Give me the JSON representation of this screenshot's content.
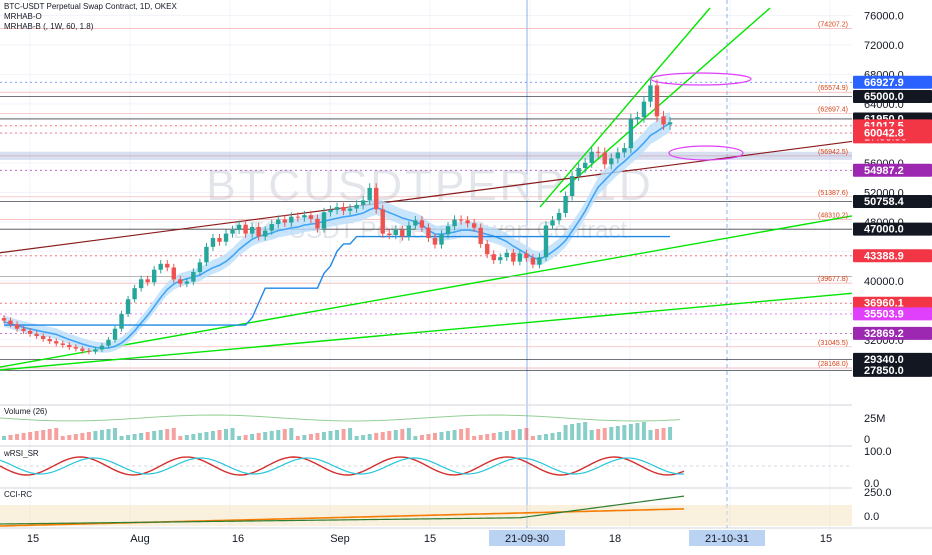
{
  "legend": {
    "title": "BTC-USDT Perpetual Swap Contract, 1D, OKEX",
    "ind1": "MRHAB-O",
    "ind2": "MRHAB-B (, 1W, 60, 1.8)"
  },
  "watermark": {
    "symbol": "BTCUSDTPERP, 1D",
    "name": "BTC-USDT Perpetual Swap Contract"
  },
  "panes": {
    "volume": "Volume (26)",
    "rsi": "wRSI_SR",
    "cci": "CCI-RC"
  },
  "colors": {
    "bull": "#26a69a",
    "bear": "#ef5350",
    "trend": "#00e600",
    "blueband": "#2962ff",
    "oscRed": "#d32f2f",
    "cciGreen": "#2e7d32",
    "cciOrange": "#f57c00"
  },
  "chart_data": {
    "type": "candlestick",
    "y_axis_ticks": [
      "76000.0",
      "72000.0",
      "68000.0",
      "64000.0",
      "56000.0",
      "52000.0",
      "48000.0",
      "40000.0",
      "32000.0"
    ],
    "y_range": [
      26000,
      77000
    ],
    "x_axis_ticks": [
      "15",
      "Aug",
      "16",
      "Sep",
      "15",
      "18",
      "15"
    ],
    "x_highlight_labels": [
      "21-09-30",
      "21-10-31"
    ],
    "price_tags": [
      {
        "label": "66927.9",
        "price": 66927.9,
        "color": "#2962ff"
      },
      {
        "label": "65000.0",
        "price": 65000.0,
        "color": "#131722"
      },
      {
        "label": "61950.0",
        "price": 61950.0,
        "color": "#131722"
      },
      {
        "label": "61017.5",
        "label2": "17:08:50",
        "price": 61017.5,
        "color": "#f23645"
      },
      {
        "label": "60042.8",
        "price": 60042.8,
        "color": "#f23645"
      },
      {
        "label": "54987.2",
        "price": 54987.2,
        "color": "#9c27b0"
      },
      {
        "label": "50758.4",
        "price": 50758.4,
        "color": "#131722"
      },
      {
        "label": "47000.0",
        "price": 47000.0,
        "color": "#131722"
      },
      {
        "label": "43388.9",
        "price": 43388.9,
        "color": "#f23645"
      },
      {
        "label": "36960.1",
        "price": 36960.1,
        "color": "#f23645"
      },
      {
        "label": "35503.9",
        "price": 35503.9,
        "color": "#e040fb"
      },
      {
        "label": "32869.2",
        "price": 32869.2,
        "color": "#9c27b0"
      },
      {
        "label": "29340.0",
        "price": 29340.0,
        "color": "#131722"
      },
      {
        "label": "27850.0",
        "price": 27850.0,
        "color": "#131722"
      }
    ],
    "level_annotations": [
      {
        "label": "(74207.2)",
        "price": 74207.2
      },
      {
        "label": "(65574.9)",
        "price": 65574.9
      },
      {
        "label": "(62697.4)",
        "price": 62697.4
      },
      {
        "label": "(56942.5)",
        "price": 56942.5
      },
      {
        "label": "(51387.6)",
        "price": 51387.6
      },
      {
        "label": "(48310.2)",
        "price": 48310.2
      },
      {
        "label": "(39677.8)",
        "price": 39677.8
      },
      {
        "label": "(31045.5)",
        "price": 31045.5
      },
      {
        "label": "(28168.0)",
        "price": 28168.0
      }
    ],
    "closes": [
      34600,
      34100,
      33500,
      33200,
      32800,
      32500,
      32100,
      31800,
      31500,
      31300,
      31000,
      30800,
      30500,
      30400,
      30700,
      31200,
      32000,
      33500,
      35500,
      37500,
      39000,
      40200,
      39800,
      41500,
      42300,
      41800,
      40200,
      39600,
      39900,
      41200,
      42500,
      44600,
      45800,
      45300,
      46400,
      46900,
      47600,
      46400,
      47300,
      46000,
      46800,
      47700,
      48300,
      47900,
      48700,
      48600,
      48900,
      48400,
      47100,
      49300,
      49600,
      50000,
      49500,
      49800,
      50300,
      50900,
      52600,
      49700,
      46400,
      46200,
      46900,
      46000,
      47500,
      48200,
      47200,
      45800,
      44900,
      46300,
      47400,
      48300,
      48200,
      47800,
      47200,
      45000,
      43600,
      42800,
      43200,
      43800,
      42600,
      43700,
      43100,
      42200,
      43200,
      47500,
      48200,
      49200,
      51500,
      54200,
      55300,
      56000,
      57500,
      57400,
      55800,
      56600,
      57400,
      58000,
      61900,
      62200,
      64300,
      66500,
      62300,
      61200,
      61500
    ]
  }
}
